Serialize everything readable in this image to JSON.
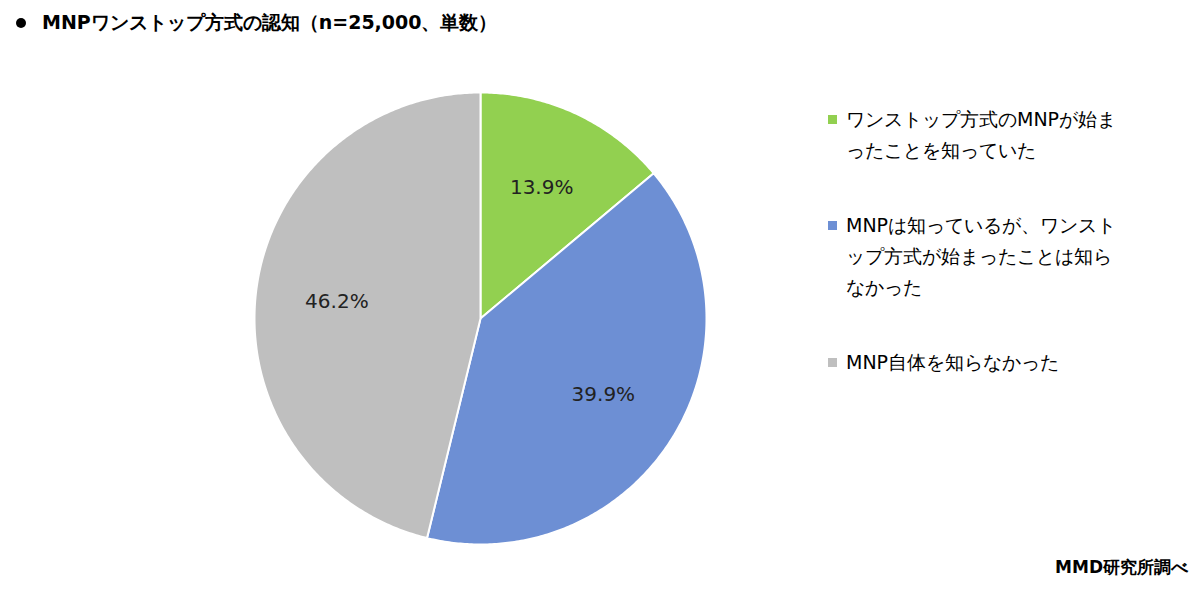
{
  "chart_data": {
    "type": "pie",
    "title": "MNPワンストップ方式の認知（n=25,000、単数）",
    "categories": [
      "ワンストップ方式のMNPが始まったことを知っていた",
      "MNPは知っているが、ワンストップ方式が始まったことは知らなかった",
      "MNP自体を知らなかった"
    ],
    "values": [
      13.9,
      39.9,
      46.2
    ],
    "value_labels": [
      "13.9%",
      "39.9%",
      "46.2%"
    ],
    "colors": [
      "#92d050",
      "#6d8fd4",
      "#bfbfbf"
    ],
    "data_labels": true,
    "legend": "right",
    "annotations": [
      "MMD研究所調べ"
    ]
  }
}
